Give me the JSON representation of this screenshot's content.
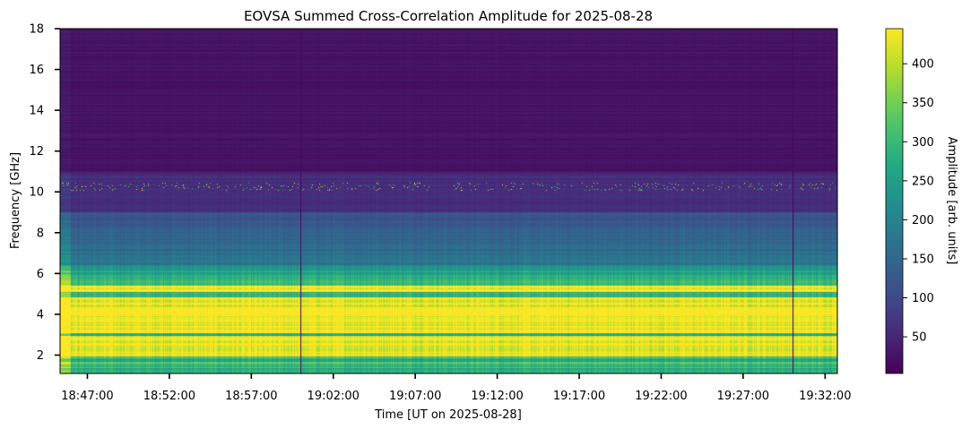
{
  "chart_data": {
    "type": "heatmap",
    "title": "EOVSA Summed Cross-Correlation Amplitude for 2025-08-28",
    "xlabel": "Time [UT on 2025-08-28]",
    "ylabel": "Frequency [GHz]",
    "x_start": "18:45:20",
    "x_end": "19:32:45",
    "x_ticks": [
      "18:47:00",
      "18:52:00",
      "18:57:00",
      "19:02:00",
      "19:07:00",
      "19:12:00",
      "19:17:00",
      "19:22:00",
      "19:27:00",
      "19:32:00"
    ],
    "ylim": [
      1.1,
      18.0
    ],
    "y_ticks": [
      2,
      4,
      6,
      8,
      10,
      12,
      14,
      16,
      18
    ],
    "colorbar": {
      "label": "Amplitude [arb. units]",
      "colormap": "viridis",
      "range": [
        3,
        445
      ],
      "ticks": [
        50,
        100,
        150,
        200,
        250,
        300,
        350,
        400
      ]
    },
    "features": {
      "bright_band_ghz": [
        1.9,
        5.4
      ],
      "emission_line_ghz": 10.25,
      "dropout_times": [
        "19:00:00",
        "19:30:00"
      ]
    },
    "grid": false
  }
}
